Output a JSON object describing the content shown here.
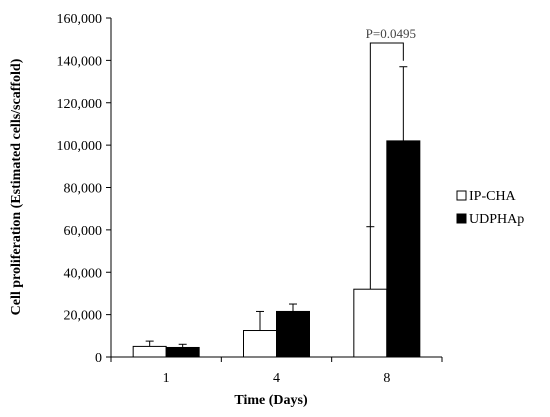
{
  "chart_data": {
    "type": "bar",
    "title": "",
    "xlabel": "Time (Days)",
    "ylabel": "Cell proliferation (Estimated cells/scaffold)",
    "categories": [
      "1",
      "4",
      "8"
    ],
    "ylim": [
      0,
      160000
    ],
    "yticks": [
      0,
      20000,
      40000,
      60000,
      80000,
      100000,
      120000,
      140000,
      160000
    ],
    "ytick_labels": [
      "0",
      "20,000",
      "40,000",
      "60,000",
      "80,000",
      "100,000",
      "120,000",
      "140,000",
      "160,000"
    ],
    "grid": false,
    "legend_position": "right",
    "series": [
      {
        "name": "IP-CHA",
        "color": "#ffffff",
        "values": [
          5000,
          12500,
          32000
        ],
        "errors": [
          2500,
          9000,
          29500
        ]
      },
      {
        "name": "UDPHAp",
        "color": "#000000",
        "values": [
          4500,
          21500,
          102000
        ],
        "errors": [
          1500,
          3500,
          35000
        ]
      }
    ],
    "annotations": [
      {
        "text": "P=0.0495",
        "category": "8",
        "between": [
          "IP-CHA",
          "UDPHAp"
        ]
      }
    ]
  }
}
